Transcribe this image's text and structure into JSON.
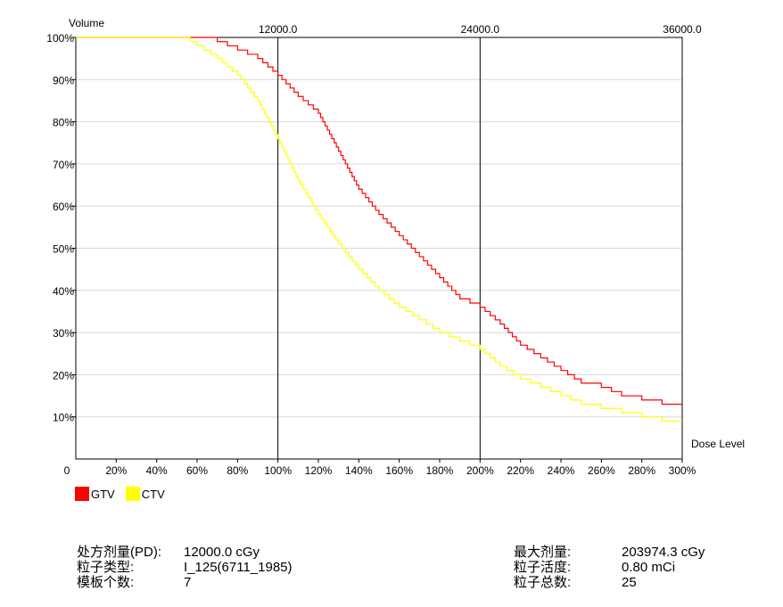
{
  "chart_data": {
    "type": "line",
    "title": "",
    "ylabel": "Volume",
    "xlabel": "Dose Level",
    "origin_label": "0",
    "xlim": [
      0,
      300
    ],
    "ylim": [
      0,
      100
    ],
    "x_ticks": [
      20,
      40,
      60,
      80,
      100,
      120,
      140,
      160,
      180,
      200,
      220,
      240,
      260,
      280,
      300
    ],
    "x_tick_labels": [
      "20%",
      "40%",
      "60%",
      "80%",
      "100%",
      "120%",
      "140%",
      "160%",
      "180%",
      "200%",
      "220%",
      "240%",
      "260%",
      "280%",
      "300%"
    ],
    "y_ticks": [
      10,
      20,
      30,
      40,
      50,
      60,
      70,
      80,
      90,
      100
    ],
    "y_tick_labels": [
      "10%",
      "20%",
      "30%",
      "40%",
      "50%",
      "60%",
      "70%",
      "80%",
      "90%",
      "100%"
    ],
    "top_axis_ticks": [
      100,
      200,
      300
    ],
    "top_axis_labels": [
      "12000.0",
      "24000.0",
      "36000.0"
    ],
    "grid": "horizontal",
    "legend_position": "bottom-left",
    "series": [
      {
        "name": "GTV",
        "color": "#ff0000",
        "x": [
          0,
          40,
          55,
          60,
          70,
          80,
          90,
          95,
          100,
          110,
          120,
          130,
          140,
          150,
          160,
          170,
          180,
          190,
          200,
          210,
          220,
          230,
          240,
          250,
          260,
          270,
          280,
          290,
          300
        ],
        "y": [
          100,
          100,
          100,
          100,
          99,
          97,
          95,
          93,
          91,
          86,
          82,
          73,
          64,
          58,
          53,
          48,
          43,
          38,
          36,
          32,
          27,
          24,
          21,
          18,
          17,
          15,
          14,
          13,
          13
        ]
      },
      {
        "name": "CTV",
        "color": "#ffff00",
        "x": [
          0,
          40,
          53,
          60,
          70,
          80,
          90,
          100,
          110,
          120,
          130,
          140,
          150,
          160,
          170,
          180,
          190,
          200,
          210,
          220,
          230,
          240,
          250,
          260,
          270,
          280,
          290,
          300
        ],
        "y": [
          100,
          100,
          100,
          98,
          95,
          91,
          85,
          76,
          66,
          58,
          51,
          45,
          40,
          36,
          33,
          30,
          28,
          26,
          22,
          19,
          17,
          15,
          13,
          12,
          11,
          10,
          9,
          9
        ]
      }
    ]
  },
  "info": {
    "left": [
      {
        "label": "处方剂量(PD):",
        "value": "12000.0 cGy"
      },
      {
        "label": "粒子类型:",
        "value": "I_125(6711_1985)"
      },
      {
        "label": "模板个数:",
        "value": "7"
      }
    ],
    "right": [
      {
        "label": "最大剂量:",
        "value": "203974.3 cGy"
      },
      {
        "label": "粒子活度:",
        "value": "0.80 mCi"
      },
      {
        "label": "粒子总数:",
        "value": "25"
      }
    ]
  }
}
